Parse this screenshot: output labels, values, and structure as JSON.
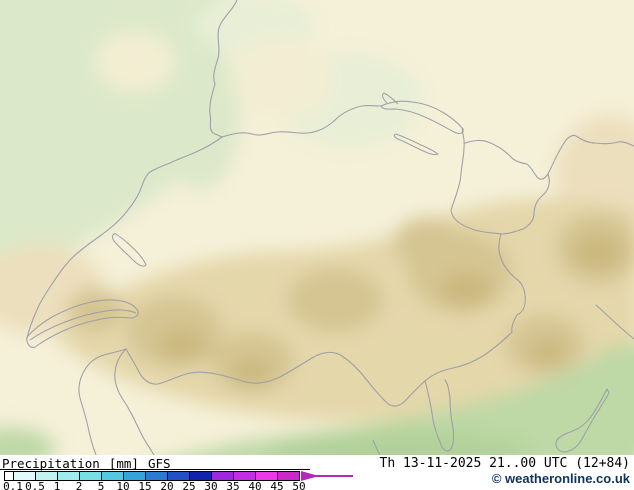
{
  "legend": {
    "title": "Precipitation",
    "unit": "[mm]",
    "model": "GFS",
    "ticks": [
      "0.1",
      "0.5",
      "1",
      "2",
      "5",
      "10",
      "15",
      "20",
      "25",
      "30",
      "35",
      "40",
      "45",
      "50"
    ],
    "lead_cell_color": "#ffffff",
    "cell_colors": [
      "#e3fafa",
      "#c2f3f3",
      "#9febee",
      "#79dfe7",
      "#53c8e0",
      "#37a4d9",
      "#2b7bd1",
      "#2450c6",
      "#1322ac",
      "#9e28e0",
      "#c32ee4",
      "#ec38e8",
      "#cb28cb"
    ],
    "arrow_color": "#b02cb4",
    "bar_border_color": "#000000"
  },
  "footer": {
    "valid_time": "Th 13-11-2025 21..00 UTC (12+84)",
    "copyright": "© weatheronline.co.uk",
    "copyright_color": "#0f335f"
  },
  "map": {
    "colors": {
      "base": "#f5f0d8",
      "green1": "#dbe8c9",
      "green2": "#e8efd6",
      "cream2": "#f3eed3",
      "tan1": "#e4d7aa",
      "tan2": "#d5c593",
      "tan3": "#cab87e",
      "beige2": "#ecdfbd",
      "sgreen": "#bed8a6",
      "sgreen2": "#b2d19a",
      "border": "#9b9ca6"
    }
  }
}
